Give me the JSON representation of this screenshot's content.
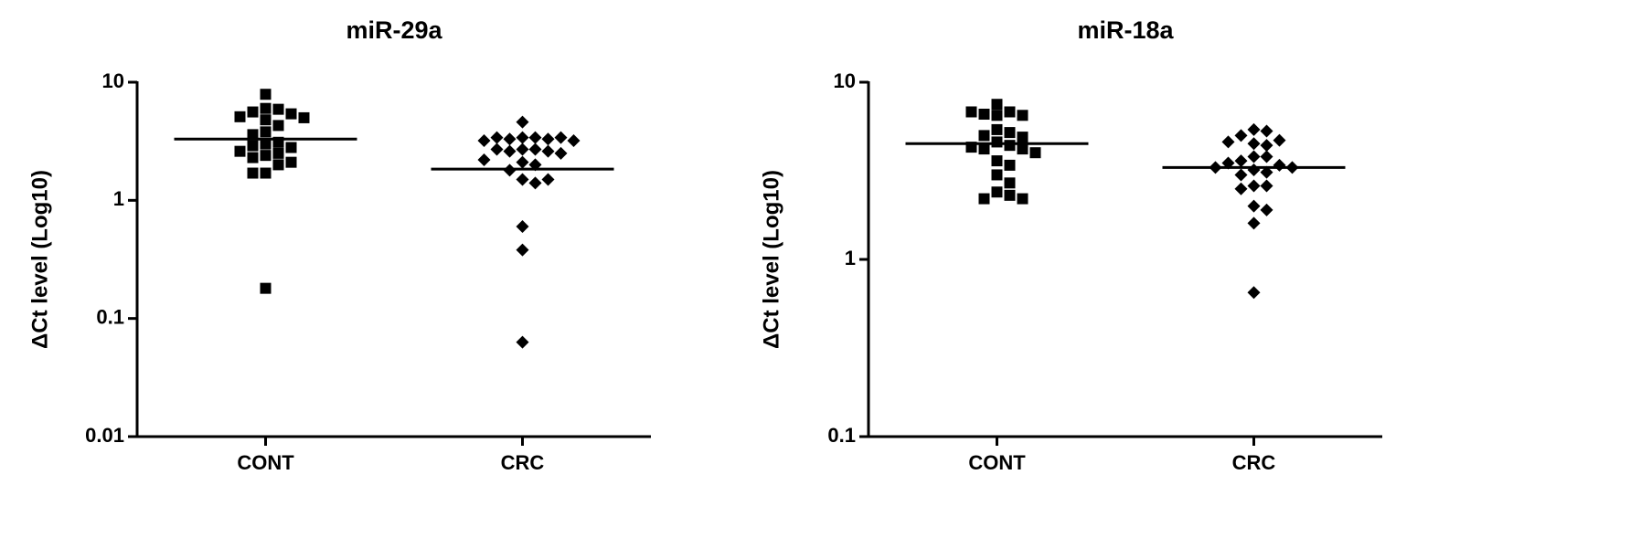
{
  "chart_data": [
    {
      "type": "dotplot",
      "title": "miR-29a",
      "y_label": "ΔCt level (Log10)",
      "categories": [
        "CONT",
        "CRC"
      ],
      "markers": [
        "square",
        "diamond"
      ],
      "values": [
        [
          7.9,
          6.0,
          5.9,
          5.6,
          5.4,
          5.1,
          5.0,
          4.8,
          4.3,
          3.8,
          3.6,
          3.1,
          3.0,
          2.9,
          2.8,
          2.6,
          2.5,
          2.4,
          2.3,
          2.1,
          2.0,
          1.7,
          1.7,
          0.18
        ],
        [
          4.6,
          3.4,
          3.4,
          3.3,
          3.3,
          3.4,
          3.4,
          3.2,
          3.2,
          2.7,
          2.7,
          2.6,
          2.6,
          2.7,
          2.5,
          2.2,
          2.1,
          2.0,
          1.8,
          1.5,
          1.4,
          1.5,
          0.6,
          0.38,
          0.063
        ]
      ],
      "center_lines": [
        3.3,
        1.84
      ],
      "color": "#000000",
      "log_y": true,
      "ylim": [
        0.01,
        10
      ],
      "yticks": [
        0.01,
        0.1,
        1,
        10
      ]
    },
    {
      "type": "dotplot",
      "title": "miR-18a",
      "y_label": "ΔCt level (Log10)",
      "categories": [
        "CONT",
        "CRC"
      ],
      "markers": [
        "square",
        "diamond"
      ],
      "values": [
        [
          7.5,
          6.8,
          6.6,
          6.5,
          6.5,
          6.8,
          5.4,
          5.2,
          5.0,
          4.9,
          4.6,
          4.4,
          4.2,
          4.2,
          4.3,
          4.0,
          3.6,
          3.4,
          3.0,
          2.7,
          2.4,
          2.3,
          2.2,
          2.2
        ],
        [
          5.4,
          5.3,
          5.0,
          4.7,
          4.5,
          4.4,
          4.6,
          3.8,
          3.8,
          3.6,
          3.4,
          3.5,
          3.3,
          3.3,
          3.2,
          3.1,
          3.0,
          2.6,
          2.6,
          2.5,
          2.0,
          1.9,
          1.6,
          0.65
        ]
      ],
      "center_lines": [
        4.5,
        3.3
      ],
      "color": "#000000",
      "log_y": true,
      "ylim": [
        0.1,
        10
      ],
      "yticks": [
        0.1,
        1,
        10
      ]
    }
  ]
}
